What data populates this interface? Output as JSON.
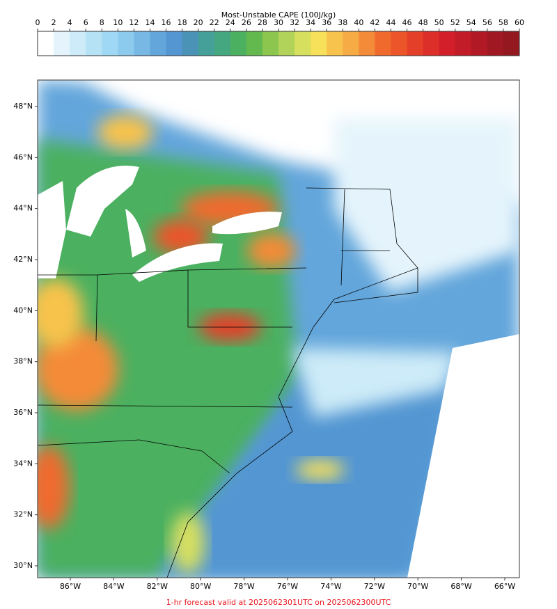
{
  "colorbar": {
    "title": "Most-Unstable CAPE (100J/kg)",
    "ticks": [
      0,
      2,
      4,
      6,
      8,
      10,
      12,
      14,
      16,
      18,
      20,
      22,
      24,
      26,
      28,
      30,
      32,
      34,
      36,
      38,
      40,
      42,
      44,
      46,
      48,
      50,
      52,
      54,
      56,
      58,
      60
    ],
    "colors": [
      "#ffffff",
      "#e5f4fc",
      "#cdebf8",
      "#b6e2f6",
      "#9fd8f4",
      "#8ccbee",
      "#78b8e4",
      "#63a6db",
      "#5396d2",
      "#4a93b6",
      "#46a09a",
      "#45a780",
      "#4bb060",
      "#63b94e",
      "#8cc64f",
      "#b1d35a",
      "#d6df5e",
      "#f7e05a",
      "#f8c34c",
      "#f6ab44",
      "#f48b38",
      "#f06a2e",
      "#ec552a",
      "#e44029",
      "#dd2f29",
      "#d21f29",
      "#c11c27",
      "#b11925",
      "#a01822",
      "#931820"
    ]
  },
  "map": {
    "lat_labels": [
      {
        "value": 48,
        "label": "48°N"
      },
      {
        "value": 46,
        "label": "46°N"
      },
      {
        "value": 44,
        "label": "44°N"
      },
      {
        "value": 42,
        "label": "42°N"
      },
      {
        "value": 40,
        "label": "40°N"
      },
      {
        "value": 38,
        "label": "38°N"
      },
      {
        "value": 36,
        "label": "36°N"
      },
      {
        "value": 34,
        "label": "34°N"
      },
      {
        "value": 32,
        "label": "32°N"
      },
      {
        "value": 30,
        "label": "30°N"
      }
    ],
    "lon_labels": [
      {
        "value": -86,
        "label": "86°W"
      },
      {
        "value": -84,
        "label": "84°W"
      },
      {
        "value": -82,
        "label": "82°W"
      },
      {
        "value": -80,
        "label": "80°W"
      },
      {
        "value": -78,
        "label": "78°W"
      },
      {
        "value": -76,
        "label": "76°W"
      },
      {
        "value": -74,
        "label": "74°W"
      },
      {
        "value": -72,
        "label": "72°W"
      },
      {
        "value": -70,
        "label": "70°W"
      },
      {
        "value": -68,
        "label": "68°W"
      },
      {
        "value": -66,
        "label": "66°W"
      }
    ]
  },
  "footer": "1-hr forecast valid at 2025062301UTC on 2025062300UTC"
}
